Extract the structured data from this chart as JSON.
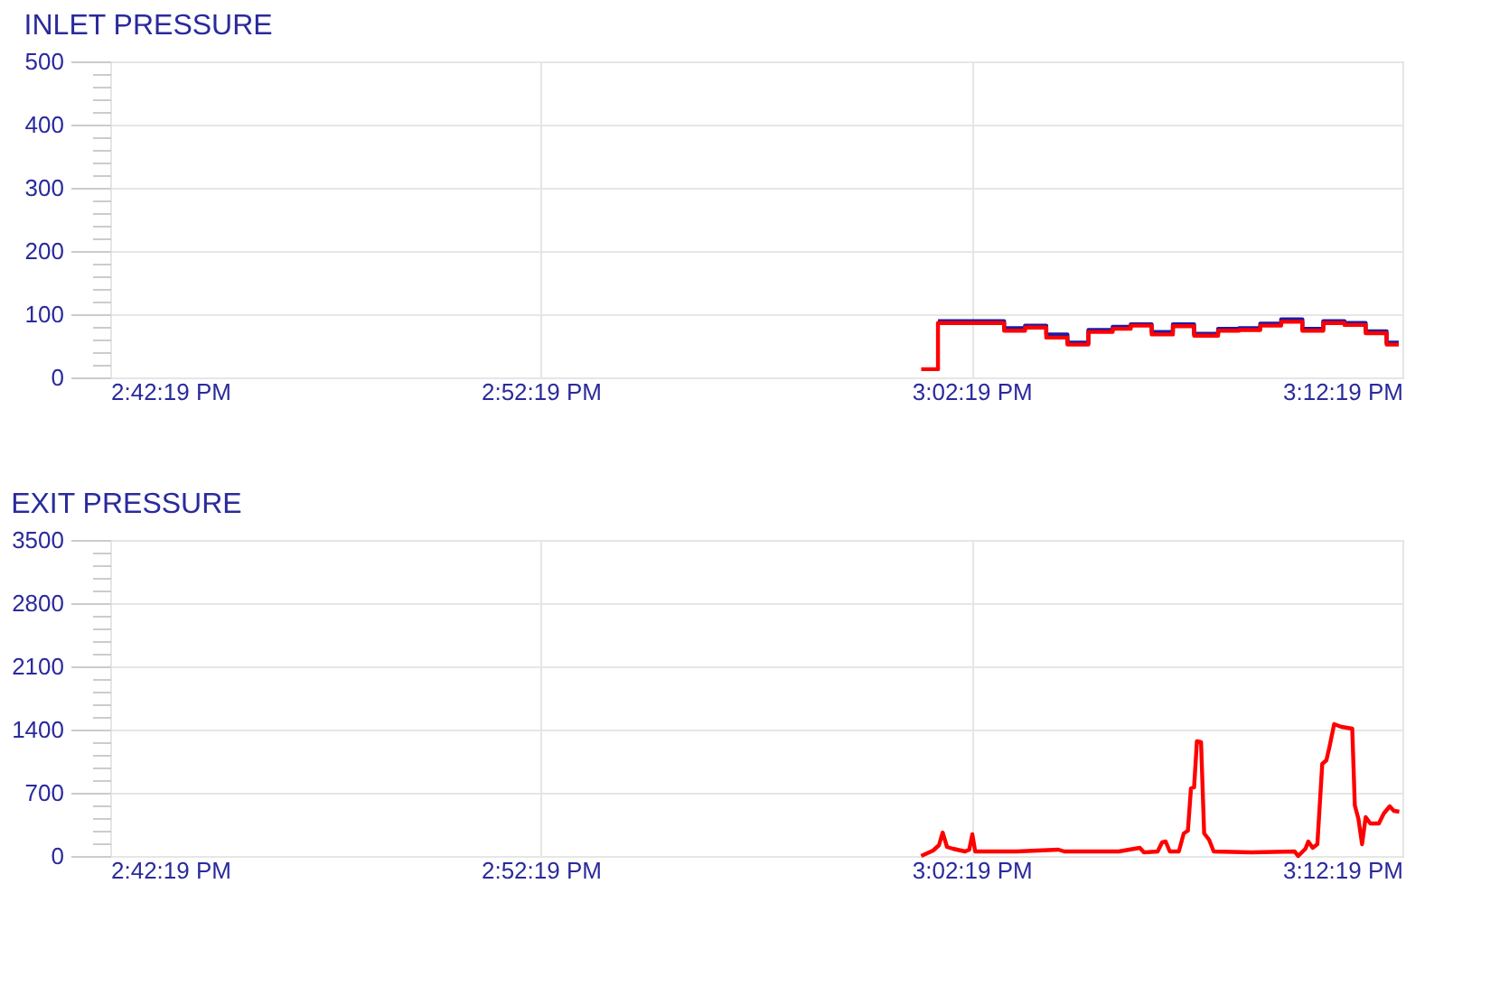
{
  "chart_data": [
    {
      "type": "step",
      "title": "INLET PRESSURE",
      "grid": true,
      "xlim": [
        14.7053,
        15.2053
      ],
      "xticks": [
        {
          "value": 14.7053,
          "label": "2:42:19 PM"
        },
        {
          "value": 14.8719,
          "label": "2:52:19 PM"
        },
        {
          "value": 15.0386,
          "label": "3:02:19 PM"
        },
        {
          "value": 15.2053,
          "label": "3:12:19 PM"
        }
      ],
      "ylim": [
        0,
        500
      ],
      "yticks": [
        0,
        {
          "value": 20,
          "label": null
        },
        {
          "value": 40,
          "label": null
        },
        {
          "value": 60,
          "label": null
        },
        {
          "value": 80,
          "label": null
        },
        100,
        {
          "value": 120,
          "label": null
        },
        {
          "value": 140,
          "label": null
        },
        {
          "value": 160,
          "label": null
        },
        {
          "value": 180,
          "label": null
        },
        200,
        {
          "value": 220,
          "label": null
        },
        {
          "value": 240,
          "label": null
        },
        {
          "value": 260,
          "label": null
        },
        {
          "value": 280,
          "label": null
        },
        300,
        {
          "value": 320,
          "label": null
        },
        {
          "value": 340,
          "label": null
        },
        {
          "value": 360,
          "label": null
        },
        {
          "value": 380,
          "label": null
        },
        400,
        {
          "value": 420,
          "label": null
        },
        {
          "value": 440,
          "label": null
        },
        {
          "value": 460,
          "label": null
        },
        {
          "value": 480,
          "label": null
        },
        500
      ],
      "x": [
        15.0191,
        15.0256,
        15.0512,
        15.0593,
        15.0675,
        15.0757,
        15.0838,
        15.0932,
        15.1002,
        15.1083,
        15.1165,
        15.1247,
        15.134,
        15.1421,
        15.1503,
        15.1584,
        15.1666,
        15.1747,
        15.1829,
        15.1911,
        15.1992,
        15.2039
      ],
      "series": [
        {
          "color": "#1a1aa6",
          "values": [
            null,
            89,
            78,
            82,
            68,
            55,
            75,
            80,
            84,
            72,
            84,
            69,
            77,
            78,
            85,
            92,
            77,
            89,
            86,
            73,
            55,
            55
          ]
        },
        {
          "color": "#ff0000",
          "values": [
            13,
            86,
            74,
            79,
            63,
            52,
            72,
            77,
            82,
            68,
            81,
            66,
            74,
            75,
            82,
            88,
            74,
            86,
            83,
            70,
            52,
            52
          ]
        }
      ]
    },
    {
      "type": "line",
      "title": "EXIT PRESSURE",
      "grid": true,
      "xlim": [
        14.7053,
        15.2053
      ],
      "xticks": [
        {
          "value": 14.7053,
          "label": "2:42:19 PM"
        },
        {
          "value": 14.8719,
          "label": "2:52:19 PM"
        },
        {
          "value": 15.0386,
          "label": "3:02:19 PM"
        },
        {
          "value": 15.2053,
          "label": "3:12:19 PM"
        }
      ],
      "ylim": [
        0,
        3500
      ],
      "yticks": [
        0,
        {
          "value": 140,
          "label": null
        },
        {
          "value": 280,
          "label": null
        },
        {
          "value": 420,
          "label": null
        },
        {
          "value": 560,
          "label": null
        },
        700,
        {
          "value": 840,
          "label": null
        },
        {
          "value": 980,
          "label": null
        },
        {
          "value": 1120,
          "label": null
        },
        {
          "value": 1260,
          "label": null
        },
        1400,
        {
          "value": 1540,
          "label": null
        },
        {
          "value": 1680,
          "label": null
        },
        {
          "value": 1820,
          "label": null
        },
        {
          "value": 1960,
          "label": null
        },
        2100,
        {
          "value": 2240,
          "label": null
        },
        {
          "value": 2380,
          "label": null
        },
        {
          "value": 2520,
          "label": null
        },
        {
          "value": 2660,
          "label": null
        },
        2800,
        {
          "value": 2940,
          "label": null
        },
        {
          "value": 3080,
          "label": null
        },
        {
          "value": 3220,
          "label": null
        },
        {
          "value": 3360,
          "label": null
        },
        3500
      ],
      "x": [
        15.0191,
        15.0237,
        15.026,
        15.0274,
        15.0291,
        15.0314,
        15.0361,
        15.0377,
        15.0389,
        15.04,
        15.0559,
        15.0722,
        15.0745,
        15.0955,
        15.1037,
        15.1053,
        15.1106,
        15.1123,
        15.1137,
        15.1153,
        15.1188,
        15.1207,
        15.1223,
        15.1235,
        15.1247,
        15.1258,
        15.1274,
        15.1286,
        15.1305,
        15.1323,
        15.1468,
        15.1636,
        15.165,
        15.1678,
        15.1689,
        15.1706,
        15.1724,
        15.1743,
        15.1759,
        15.1771,
        15.1789,
        15.1817,
        15.1859,
        15.1869,
        15.1883,
        15.1897,
        15.1911,
        15.1929,
        15.1962,
        15.1981,
        15.2004,
        15.202,
        15.2041
      ],
      "series": [
        {
          "color": "#ff0000",
          "values": [
            0,
            60,
            120,
            260,
            100,
            80,
            50,
            70,
            240,
            50,
            50,
            70,
            50,
            50,
            90,
            40,
            50,
            150,
            160,
            50,
            50,
            250,
            280,
            750,
            760,
            1270,
            1260,
            250,
            180,
            50,
            40,
            50,
            0,
            80,
            160,
            90,
            130,
            1020,
            1060,
            1210,
            1460,
            1430,
            1410,
            560,
            410,
            130,
            430,
            360,
            360,
            470,
            550,
            500,
            490
          ]
        }
      ]
    }
  ]
}
